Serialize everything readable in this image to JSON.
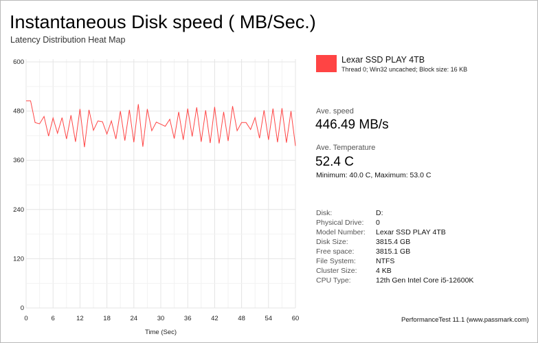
{
  "header": {
    "title": "Instantaneous Disk speed ( MB/Sec.)",
    "subtitle": "Latency Distribution Heat Map"
  },
  "chart_data": {
    "type": "line",
    "xlabel": "Time (Sec)",
    "ylabel": "",
    "xlim": [
      0,
      60
    ],
    "ylim": [
      0,
      600
    ],
    "xticks": [
      0,
      6,
      12,
      18,
      24,
      30,
      36,
      42,
      48,
      54,
      60
    ],
    "yticks": [
      0,
      120,
      240,
      360,
      480,
      600
    ],
    "grid": true,
    "legend_position": "right",
    "series": [
      {
        "name": "Lexar SSD PLAY 4TB",
        "color": "#ff4444",
        "x": [
          0,
          1,
          2,
          3,
          4,
          5,
          6,
          7,
          8,
          9,
          10,
          11,
          12,
          13,
          14,
          15,
          16,
          17,
          18,
          19,
          20,
          21,
          22,
          23,
          24,
          25,
          26,
          27,
          28,
          29,
          30,
          31,
          32,
          33,
          34,
          35,
          36,
          37,
          38,
          39,
          40,
          41,
          42,
          43,
          44,
          45,
          46,
          47,
          48,
          49,
          50,
          51,
          52,
          53,
          54,
          55,
          56,
          57,
          58,
          59,
          60
        ],
        "y": [
          505,
          505,
          452,
          449,
          467,
          419,
          463,
          426,
          464,
          412,
          470,
          405,
          485,
          392,
          483,
          433,
          456,
          454,
          424,
          456,
          412,
          480,
          408,
          483,
          404,
          497,
          393,
          485,
          432,
          453,
          448,
          443,
          460,
          413,
          478,
          410,
          486,
          418,
          489,
          405,
          482,
          402,
          490,
          401,
          478,
          407,
          492,
          432,
          452,
          452,
          435,
          464,
          414,
          482,
          410,
          486,
          404,
          487,
          403,
          480,
          395
        ]
      }
    ]
  },
  "legend": {
    "name": "Lexar SSD PLAY 4TB",
    "details": "Thread 0; Win32 uncached; Block size: 16 KB",
    "color": "#ff4444"
  },
  "stats": {
    "avg_speed_label": "Ave. speed",
    "avg_speed_value": "446.49 MB/s",
    "avg_temp_label": "Ave. Temperature",
    "avg_temp_value": "52.4 C",
    "minmax": "Minimum: 40.0 C, Maximum: 53.0 C"
  },
  "info": [
    {
      "key": "Disk:",
      "value": "D:"
    },
    {
      "key": "Physical Drive:",
      "value": "0"
    },
    {
      "key": "Model Number:",
      "value": "Lexar SSD PLAY 4TB"
    },
    {
      "key": "Disk Size:",
      "value": "3815.4 GB"
    },
    {
      "key": "Free space:",
      "value": "3815.1 GB"
    },
    {
      "key": "File System:",
      "value": "NTFS"
    },
    {
      "key": "Cluster Size:",
      "value": "4 KB"
    },
    {
      "key": "CPU Type:",
      "value": "12th Gen Intel Core i5-12600K"
    }
  ],
  "footer": "PerformanceTest 11.1 (www.passmark.com)"
}
